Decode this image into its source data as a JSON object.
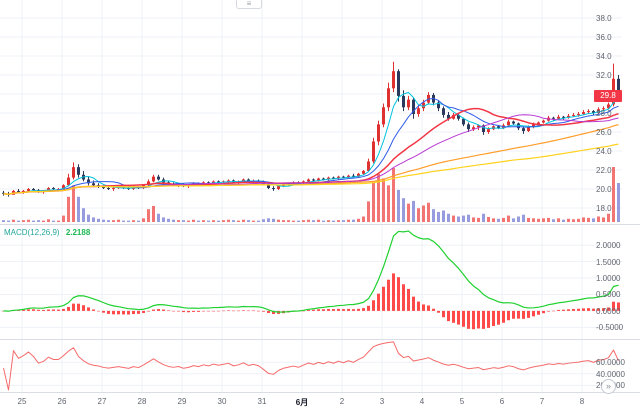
{
  "ui": {
    "last_price_label": "29.8",
    "macd_legend": {
      "label": "MACD(12,26,9)",
      "value": "2.2188"
    },
    "icons": {
      "pane_handle_icon": "≡",
      "scroll_to_latest_icon": "»"
    }
  },
  "colors": {
    "grid": "#eef1f7",
    "separator": "#dadde5",
    "axis_text": "#60646e",
    "candle_up": "#e03131",
    "candle_down": "#2b3a5c",
    "volume_up": "#ef5350",
    "volume_down": "#7c83d6",
    "macd_line": "#1fd12f",
    "macd_histogram": "#ff4a4a",
    "rsi_line": "#f56a6a",
    "badge_bg": "#f23645"
  },
  "chart_data": {
    "type": "candlestick",
    "title": "",
    "x_labels": [
      "25",
      "26",
      "27",
      "28",
      "29",
      "30",
      "31",
      "6月",
      "2",
      "3",
      "4",
      "5",
      "6",
      "7",
      "8"
    ],
    "price_ticks": [
      38,
      36,
      34,
      32,
      30,
      28,
      26,
      24,
      22,
      20,
      18
    ],
    "macd_ticks": [
      2,
      1.5,
      1,
      0.5,
      0,
      -0.5
    ],
    "rsi_ticks": [
      60,
      40,
      20
    ],
    "last_price": 29.8,
    "sma_overlays": [
      {
        "window": 5,
        "color": "#00c3dd",
        "width": 1
      },
      {
        "window": 10,
        "color": "#2f5be7",
        "width": 1
      },
      {
        "window": 20,
        "color": "#f23645",
        "width": 1.5
      },
      {
        "window": 30,
        "color": "#b939d3",
        "width": 1
      },
      {
        "window": 60,
        "color": "#ff9d2b",
        "width": 1.2
      },
      {
        "window": 90,
        "color": "#ffd21e",
        "width": 1.2
      }
    ],
    "macd_params": [
      12,
      26,
      9
    ],
    "rsi_period": 14,
    "ohlcv_format": [
      "open",
      "high",
      "low",
      "close",
      "volume"
    ],
    "ohlcv": [
      [
        19.6,
        19.8,
        19.3,
        19.5,
        4
      ],
      [
        19.5,
        19.7,
        19.2,
        19.4,
        3
      ],
      [
        19.4,
        19.9,
        19.4,
        19.8,
        5
      ],
      [
        19.8,
        20.0,
        19.6,
        19.7,
        3
      ],
      [
        19.7,
        19.9,
        19.5,
        19.8,
        4
      ],
      [
        19.8,
        20.1,
        19.7,
        20.0,
        5
      ],
      [
        20.0,
        20.1,
        19.8,
        19.9,
        3
      ],
      [
        19.9,
        20.0,
        19.6,
        19.7,
        4
      ],
      [
        19.7,
        19.9,
        19.5,
        19.8,
        3
      ],
      [
        19.8,
        20.2,
        19.8,
        20.1,
        6
      ],
      [
        20.1,
        20.2,
        19.9,
        20.0,
        3
      ],
      [
        20.0,
        20.1,
        19.8,
        20.0,
        3
      ],
      [
        20.0,
        20.5,
        19.9,
        20.4,
        14
      ],
      [
        20.4,
        21.6,
        20.3,
        21.2,
        55
      ],
      [
        21.2,
        22.8,
        21.0,
        22.3,
        80
      ],
      [
        22.3,
        22.6,
        21.2,
        21.5,
        55
      ],
      [
        21.5,
        21.9,
        20.8,
        21.0,
        30
      ],
      [
        21.0,
        21.3,
        20.4,
        20.6,
        16
      ],
      [
        20.6,
        20.9,
        20.2,
        20.4,
        10
      ],
      [
        20.4,
        20.6,
        20.1,
        20.3,
        7
      ],
      [
        20.3,
        20.4,
        20.0,
        20.1,
        5
      ],
      [
        20.1,
        20.3,
        19.9,
        20.0,
        4
      ],
      [
        20.0,
        20.2,
        19.8,
        20.1,
        4
      ],
      [
        20.1,
        20.4,
        20.0,
        20.2,
        5
      ],
      [
        20.2,
        20.3,
        20.0,
        20.1,
        3
      ],
      [
        20.1,
        20.2,
        19.9,
        20.0,
        3
      ],
      [
        20.0,
        20.3,
        19.9,
        20.2,
        4
      ],
      [
        20.2,
        20.3,
        20.0,
        20.1,
        3
      ],
      [
        20.1,
        20.5,
        20.0,
        20.4,
        8
      ],
      [
        20.4,
        21.0,
        20.3,
        20.8,
        28
      ],
      [
        20.8,
        21.5,
        20.7,
        21.3,
        35
      ],
      [
        21.3,
        21.5,
        20.9,
        21.0,
        18
      ],
      [
        21.0,
        21.2,
        20.6,
        20.7,
        10
      ],
      [
        20.7,
        20.9,
        20.4,
        20.5,
        7
      ],
      [
        20.5,
        20.7,
        20.3,
        20.4,
        5
      ],
      [
        20.4,
        20.6,
        20.2,
        20.5,
        4
      ],
      [
        20.5,
        20.6,
        20.2,
        20.3,
        4
      ],
      [
        20.3,
        20.5,
        20.1,
        20.4,
        3
      ],
      [
        20.4,
        20.7,
        20.3,
        20.6,
        5
      ],
      [
        20.6,
        20.7,
        20.4,
        20.5,
        3
      ],
      [
        20.5,
        20.8,
        20.4,
        20.7,
        4
      ],
      [
        20.7,
        20.8,
        20.5,
        20.6,
        3
      ],
      [
        20.6,
        20.9,
        20.5,
        20.8,
        4
      ],
      [
        20.8,
        20.9,
        20.6,
        20.7,
        3
      ],
      [
        20.7,
        20.9,
        20.5,
        20.8,
        4
      ],
      [
        20.8,
        21.0,
        20.6,
        20.9,
        5
      ],
      [
        20.9,
        21.0,
        20.6,
        20.7,
        4
      ],
      [
        20.7,
        20.9,
        20.5,
        20.8,
        3
      ],
      [
        20.8,
        21.1,
        20.7,
        21.0,
        5
      ],
      [
        21.0,
        21.1,
        20.7,
        20.8,
        4
      ],
      [
        20.8,
        21.0,
        20.6,
        20.9,
        3
      ],
      [
        20.9,
        21.0,
        20.7,
        20.8,
        3
      ],
      [
        20.8,
        20.9,
        20.4,
        20.5,
        6
      ],
      [
        20.5,
        20.6,
        20.0,
        20.1,
        8
      ],
      [
        20.1,
        20.3,
        19.8,
        20.0,
        7
      ],
      [
        20.0,
        20.4,
        19.9,
        20.3,
        5
      ],
      [
        20.3,
        20.6,
        20.2,
        20.5,
        4
      ],
      [
        20.5,
        20.7,
        20.3,
        20.6,
        4
      ],
      [
        20.6,
        20.8,
        20.4,
        20.7,
        3
      ],
      [
        20.7,
        20.8,
        20.5,
        20.6,
        3
      ],
      [
        20.6,
        20.9,
        20.5,
        20.8,
        4
      ],
      [
        20.8,
        21.1,
        20.7,
        21.0,
        5
      ],
      [
        21.0,
        21.1,
        20.8,
        20.9,
        4
      ],
      [
        20.9,
        21.2,
        20.8,
        21.1,
        5
      ],
      [
        21.1,
        21.2,
        20.9,
        21.0,
        3
      ],
      [
        21.0,
        21.3,
        20.9,
        21.2,
        4
      ],
      [
        21.2,
        21.3,
        21.0,
        21.1,
        3
      ],
      [
        21.1,
        21.4,
        21.0,
        21.3,
        4
      ],
      [
        21.3,
        21.4,
        21.1,
        21.2,
        4
      ],
      [
        21.2,
        21.5,
        21.1,
        21.4,
        5
      ],
      [
        21.4,
        21.6,
        21.2,
        21.3,
        5
      ],
      [
        21.3,
        21.7,
        21.2,
        21.6,
        7
      ],
      [
        21.6,
        22.0,
        21.5,
        21.9,
        12
      ],
      [
        21.9,
        23.2,
        21.8,
        22.9,
        45
      ],
      [
        22.9,
        25.4,
        22.7,
        25.0,
        88
      ],
      [
        25.0,
        27.2,
        24.6,
        26.8,
        105
      ],
      [
        26.8,
        29.0,
        26.5,
        28.6,
        95
      ],
      [
        28.6,
        31.2,
        28.2,
        30.6,
        80
      ],
      [
        30.6,
        33.4,
        30.2,
        32.4,
        118
      ],
      [
        32.4,
        32.6,
        29.2,
        29.8,
        70
      ],
      [
        29.8,
        30.4,
        28.2,
        28.6,
        52
      ],
      [
        28.6,
        29.8,
        28.3,
        29.4,
        40
      ],
      [
        29.4,
        29.6,
        27.4,
        27.9,
        46
      ],
      [
        27.9,
        28.8,
        27.6,
        28.5,
        30
      ],
      [
        28.5,
        29.4,
        28.2,
        29.1,
        36
      ],
      [
        29.1,
        30.2,
        28.9,
        29.9,
        42
      ],
      [
        29.9,
        30.1,
        28.8,
        29.1,
        28
      ],
      [
        29.1,
        29.3,
        28.2,
        28.5,
        22
      ],
      [
        28.5,
        28.7,
        27.5,
        27.8,
        25
      ],
      [
        27.8,
        28.1,
        27.2,
        27.4,
        18
      ],
      [
        27.4,
        28.0,
        27.3,
        27.8,
        14
      ],
      [
        27.8,
        27.9,
        27.2,
        27.4,
        12
      ],
      [
        27.4,
        27.5,
        26.6,
        26.8,
        14
      ],
      [
        26.8,
        27.0,
        26.0,
        26.3,
        16
      ],
      [
        26.3,
        26.7,
        26.1,
        26.5,
        10
      ],
      [
        26.5,
        26.8,
        26.2,
        26.7,
        9
      ],
      [
        26.7,
        26.8,
        25.7,
        26.0,
        18
      ],
      [
        26.0,
        26.5,
        25.8,
        26.3,
        11
      ],
      [
        26.3,
        26.7,
        26.2,
        26.6,
        8
      ],
      [
        26.6,
        26.7,
        26.3,
        26.4,
        7
      ],
      [
        26.4,
        26.9,
        26.3,
        26.7,
        9
      ],
      [
        26.7,
        27.3,
        26.6,
        27.1,
        14
      ],
      [
        27.1,
        27.2,
        26.7,
        26.9,
        8
      ],
      [
        26.9,
        27.0,
        26.2,
        26.4,
        12
      ],
      [
        26.4,
        26.6,
        25.8,
        26.1,
        16
      ],
      [
        26.1,
        26.7,
        26.0,
        26.5,
        9
      ],
      [
        26.5,
        27.0,
        26.4,
        26.8,
        8
      ],
      [
        26.8,
        27.1,
        26.7,
        27.0,
        7
      ],
      [
        27.0,
        27.3,
        26.9,
        27.2,
        8
      ],
      [
        27.2,
        27.7,
        27.1,
        27.5,
        9
      ],
      [
        27.5,
        27.6,
        27.2,
        27.4,
        6
      ],
      [
        27.4,
        27.8,
        27.3,
        27.6,
        8
      ],
      [
        27.6,
        27.7,
        27.3,
        27.5,
        5
      ],
      [
        27.5,
        27.9,
        27.4,
        27.7,
        7
      ],
      [
        27.7,
        28.0,
        27.6,
        27.8,
        6
      ],
      [
        27.8,
        28.1,
        27.6,
        27.9,
        7
      ],
      [
        27.9,
        28.3,
        27.8,
        28.1,
        10
      ],
      [
        28.1,
        28.4,
        27.9,
        28.2,
        9
      ],
      [
        28.2,
        28.3,
        27.8,
        28.0,
        8
      ],
      [
        28.0,
        28.6,
        27.9,
        28.4,
        12
      ],
      [
        28.4,
        28.7,
        28.2,
        28.5,
        10
      ],
      [
        28.5,
        29.1,
        28.4,
        28.9,
        18
      ],
      [
        28.9,
        33.2,
        28.7,
        31.6,
        120
      ],
      [
        31.6,
        32.0,
        29.3,
        29.8,
        85
      ]
    ]
  }
}
